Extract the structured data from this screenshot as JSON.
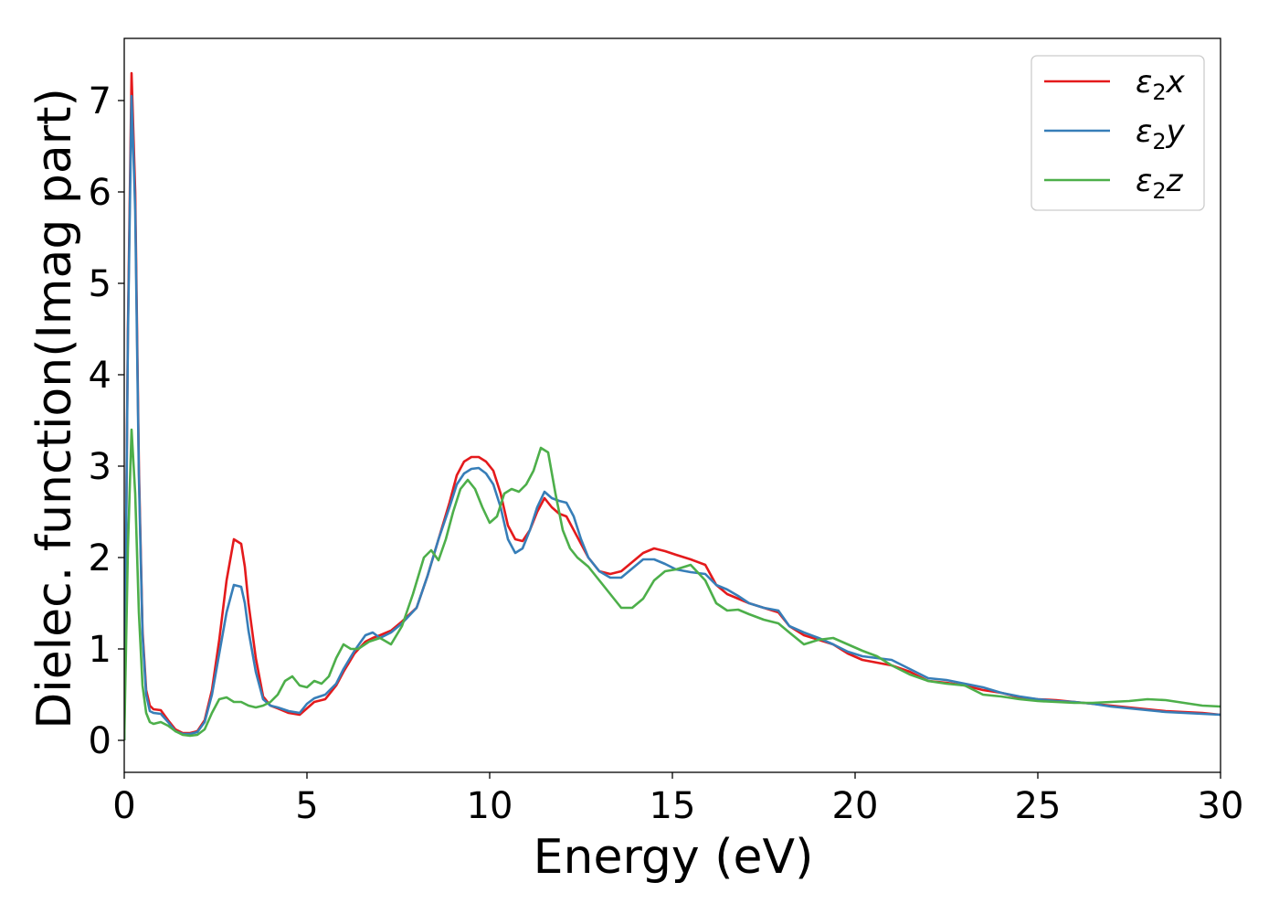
{
  "chart_data": {
    "type": "line",
    "xlabel": "Energy (eV)",
    "ylabel": "Dielec. function(Imag part)",
    "xlim": [
      0,
      30
    ],
    "ylim": [
      -0.35,
      7.68
    ],
    "xticks": [
      "0",
      "5",
      "10",
      "15",
      "20",
      "25",
      "30"
    ],
    "yticks": [
      "0",
      "1",
      "2",
      "3",
      "4",
      "5",
      "6",
      "7"
    ],
    "grid": false,
    "legend_position": "top-right",
    "series": [
      {
        "name": "ε2x",
        "legend_base": "ε",
        "legend_sub": "2",
        "legend_tail": "x",
        "color": "#e41a1c",
        "x": [
          0,
          0.1,
          0.2,
          0.3,
          0.4,
          0.5,
          0.6,
          0.7,
          0.8,
          1.0,
          1.2,
          1.4,
          1.6,
          1.8,
          2.0,
          2.2,
          2.4,
          2.6,
          2.8,
          3.0,
          3.2,
          3.3,
          3.4,
          3.6,
          3.8,
          4.0,
          4.2,
          4.5,
          4.8,
          5.0,
          5.2,
          5.5,
          5.8,
          6.0,
          6.3,
          6.6,
          6.8,
          7.0,
          7.3,
          7.6,
          8.0,
          8.3,
          8.6,
          8.9,
          9.1,
          9.3,
          9.5,
          9.7,
          9.9,
          10.1,
          10.3,
          10.5,
          10.7,
          10.9,
          11.1,
          11.3,
          11.5,
          11.7,
          11.9,
          12.1,
          12.3,
          12.5,
          12.7,
          13.0,
          13.3,
          13.6,
          13.9,
          14.2,
          14.5,
          14.8,
          15.1,
          15.5,
          15.9,
          16.2,
          16.5,
          16.8,
          17.1,
          17.5,
          17.9,
          18.2,
          18.6,
          19.0,
          19.4,
          19.8,
          20.2,
          20.6,
          21.0,
          21.5,
          22.0,
          22.5,
          23.0,
          23.5,
          24.0,
          24.5,
          25.0,
          25.5,
          26.0,
          26.5,
          27.0,
          27.5,
          28.0,
          28.5,
          29.0,
          29.5,
          30.0
        ],
        "y": [
          0,
          4.5,
          7.3,
          6.0,
          3.0,
          1.2,
          0.55,
          0.38,
          0.34,
          0.33,
          0.22,
          0.12,
          0.08,
          0.08,
          0.1,
          0.22,
          0.55,
          1.1,
          1.75,
          2.2,
          2.15,
          1.9,
          1.5,
          0.9,
          0.48,
          0.38,
          0.35,
          0.3,
          0.28,
          0.35,
          0.42,
          0.45,
          0.6,
          0.75,
          0.95,
          1.08,
          1.12,
          1.15,
          1.2,
          1.3,
          1.45,
          1.8,
          2.2,
          2.6,
          2.9,
          3.05,
          3.1,
          3.1,
          3.05,
          2.95,
          2.7,
          2.35,
          2.2,
          2.18,
          2.3,
          2.5,
          2.65,
          2.55,
          2.48,
          2.45,
          2.3,
          2.15,
          2.0,
          1.85,
          1.82,
          1.85,
          1.95,
          2.05,
          2.1,
          2.07,
          2.03,
          1.98,
          1.92,
          1.7,
          1.6,
          1.55,
          1.5,
          1.45,
          1.4,
          1.25,
          1.15,
          1.1,
          1.05,
          0.95,
          0.88,
          0.85,
          0.82,
          0.75,
          0.65,
          0.63,
          0.6,
          0.55,
          0.52,
          0.47,
          0.45,
          0.44,
          0.42,
          0.4,
          0.38,
          0.36,
          0.34,
          0.32,
          0.31,
          0.3,
          0.28
        ]
      },
      {
        "name": "ε2y",
        "legend_base": "ε",
        "legend_sub": "2",
        "legend_tail": "y",
        "color": "#377eb8",
        "x": [
          0,
          0.1,
          0.2,
          0.3,
          0.4,
          0.5,
          0.6,
          0.7,
          0.8,
          1.0,
          1.2,
          1.4,
          1.6,
          1.8,
          2.0,
          2.2,
          2.4,
          2.6,
          2.8,
          3.0,
          3.2,
          3.3,
          3.4,
          3.6,
          3.8,
          4.0,
          4.2,
          4.5,
          4.8,
          5.0,
          5.2,
          5.5,
          5.8,
          6.0,
          6.3,
          6.6,
          6.8,
          7.0,
          7.3,
          7.6,
          8.0,
          8.3,
          8.6,
          8.9,
          9.1,
          9.3,
          9.5,
          9.7,
          9.9,
          10.1,
          10.3,
          10.5,
          10.7,
          10.9,
          11.1,
          11.3,
          11.5,
          11.7,
          11.9,
          12.1,
          12.3,
          12.5,
          12.7,
          13.0,
          13.3,
          13.6,
          13.9,
          14.2,
          14.5,
          14.8,
          15.1,
          15.5,
          15.9,
          16.2,
          16.5,
          16.8,
          17.1,
          17.5,
          17.9,
          18.2,
          18.6,
          19.0,
          19.4,
          19.8,
          20.2,
          20.6,
          21.0,
          21.5,
          22.0,
          22.5,
          23.0,
          23.5,
          24.0,
          24.5,
          25.0,
          25.5,
          26.0,
          26.5,
          27.0,
          27.5,
          28.0,
          28.5,
          29.0,
          29.5,
          30.0
        ],
        "y": [
          0,
          4.4,
          7.05,
          5.8,
          2.9,
          1.15,
          0.5,
          0.32,
          0.3,
          0.29,
          0.2,
          0.1,
          0.07,
          0.07,
          0.09,
          0.2,
          0.5,
          0.95,
          1.4,
          1.7,
          1.68,
          1.5,
          1.2,
          0.75,
          0.45,
          0.38,
          0.36,
          0.32,
          0.3,
          0.4,
          0.46,
          0.5,
          0.62,
          0.78,
          0.98,
          1.15,
          1.18,
          1.12,
          1.18,
          1.28,
          1.45,
          1.8,
          2.2,
          2.55,
          2.8,
          2.92,
          2.97,
          2.98,
          2.92,
          2.8,
          2.55,
          2.2,
          2.05,
          2.1,
          2.3,
          2.55,
          2.72,
          2.65,
          2.62,
          2.6,
          2.45,
          2.2,
          2.0,
          1.85,
          1.78,
          1.78,
          1.88,
          1.98,
          1.98,
          1.93,
          1.87,
          1.84,
          1.82,
          1.7,
          1.65,
          1.58,
          1.5,
          1.45,
          1.42,
          1.25,
          1.18,
          1.12,
          1.05,
          0.97,
          0.92,
          0.9,
          0.88,
          0.78,
          0.68,
          0.66,
          0.62,
          0.58,
          0.52,
          0.48,
          0.45,
          0.43,
          0.42,
          0.4,
          0.37,
          0.35,
          0.33,
          0.31,
          0.3,
          0.29,
          0.28
        ]
      },
      {
        "name": "ε2z",
        "legend_base": "ε",
        "legend_sub": "2",
        "legend_tail": "z",
        "color": "#4daf4a",
        "x": [
          0,
          0.1,
          0.2,
          0.3,
          0.4,
          0.5,
          0.6,
          0.7,
          0.8,
          1.0,
          1.2,
          1.4,
          1.6,
          1.8,
          2.0,
          2.2,
          2.4,
          2.6,
          2.8,
          3.0,
          3.2,
          3.4,
          3.6,
          3.8,
          4.0,
          4.2,
          4.4,
          4.6,
          4.8,
          5.0,
          5.2,
          5.4,
          5.6,
          5.8,
          6.0,
          6.2,
          6.4,
          6.7,
          7.0,
          7.3,
          7.6,
          7.9,
          8.2,
          8.4,
          8.6,
          8.8,
          9.0,
          9.2,
          9.4,
          9.6,
          9.8,
          10.0,
          10.2,
          10.4,
          10.6,
          10.8,
          11.0,
          11.2,
          11.4,
          11.6,
          11.8,
          12.0,
          12.2,
          12.4,
          12.7,
          13.0,
          13.3,
          13.6,
          13.9,
          14.2,
          14.5,
          14.8,
          15.1,
          15.5,
          15.9,
          16.2,
          16.5,
          16.8,
          17.1,
          17.5,
          17.9,
          18.2,
          18.6,
          19.0,
          19.4,
          19.8,
          20.2,
          20.6,
          21.0,
          21.5,
          22.0,
          22.5,
          23.0,
          23.5,
          24.0,
          24.5,
          25.0,
          25.5,
          26.0,
          26.5,
          27.0,
          27.5,
          28.0,
          28.5,
          29.0,
          29.5,
          30.0
        ],
        "y": [
          0,
          2.1,
          3.4,
          2.7,
          1.4,
          0.6,
          0.3,
          0.2,
          0.18,
          0.2,
          0.16,
          0.1,
          0.06,
          0.05,
          0.06,
          0.12,
          0.3,
          0.45,
          0.47,
          0.42,
          0.42,
          0.38,
          0.36,
          0.38,
          0.42,
          0.5,
          0.65,
          0.7,
          0.6,
          0.58,
          0.65,
          0.62,
          0.7,
          0.9,
          1.05,
          1.0,
          1.0,
          1.08,
          1.12,
          1.05,
          1.25,
          1.6,
          2.0,
          2.08,
          1.97,
          2.2,
          2.5,
          2.75,
          2.85,
          2.75,
          2.55,
          2.38,
          2.45,
          2.7,
          2.75,
          2.72,
          2.8,
          2.95,
          3.2,
          3.15,
          2.7,
          2.3,
          2.1,
          2.0,
          1.9,
          1.75,
          1.6,
          1.45,
          1.45,
          1.55,
          1.75,
          1.85,
          1.87,
          1.92,
          1.75,
          1.5,
          1.42,
          1.43,
          1.38,
          1.32,
          1.28,
          1.18,
          1.05,
          1.1,
          1.12,
          1.05,
          0.98,
          0.92,
          0.82,
          0.72,
          0.65,
          0.62,
          0.6,
          0.5,
          0.48,
          0.45,
          0.43,
          0.42,
          0.41,
          0.41,
          0.42,
          0.43,
          0.45,
          0.44,
          0.41,
          0.38,
          0.37
        ]
      }
    ]
  }
}
